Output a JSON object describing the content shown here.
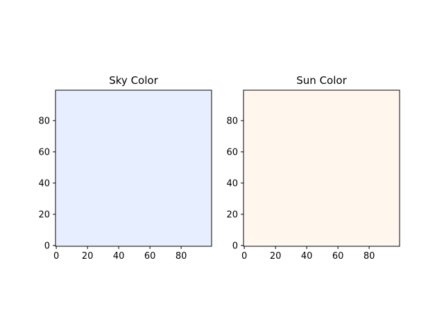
{
  "chart_data": [
    {
      "type": "heatmap",
      "title": "Sky Color",
      "fill_color": "#e6eeff",
      "band_color": null,
      "band_rows": null,
      "xlim": [
        -0.5,
        99.5
      ],
      "ylim": [
        99.5,
        -0.5
      ],
      "xticks": [
        0,
        20,
        40,
        60,
        80
      ],
      "yticks": [
        0,
        20,
        40,
        60,
        80
      ],
      "grid": false
    },
    {
      "type": "heatmap",
      "title": "Sun Color",
      "fill_color": "#fff7ee",
      "band_color": "#fff8f0",
      "band_rows": [
        0,
        5
      ],
      "xlim": [
        -0.5,
        99.5
      ],
      "ylim": [
        99.5,
        -0.5
      ],
      "xticks": [
        0,
        20,
        40,
        60,
        80
      ],
      "yticks": [
        0,
        20,
        40,
        60,
        80
      ],
      "grid": false
    }
  ]
}
